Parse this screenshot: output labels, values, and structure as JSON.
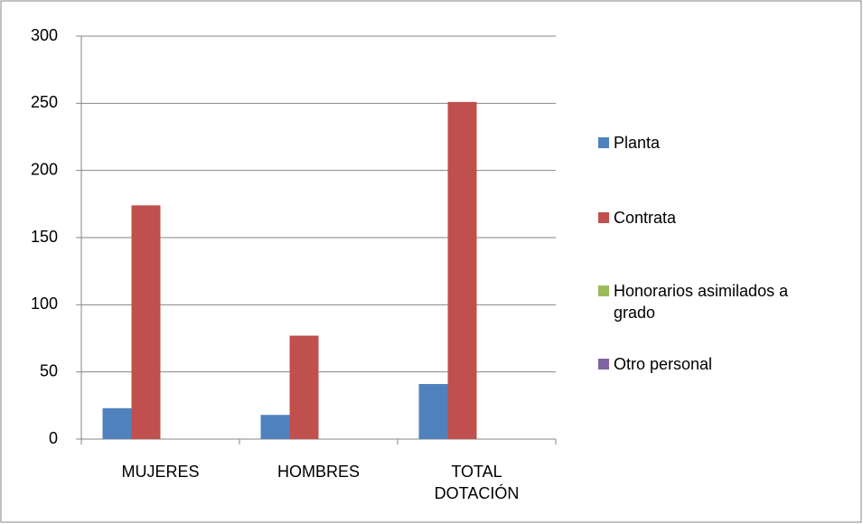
{
  "chart_data": {
    "type": "bar",
    "categories": [
      "MUJERES",
      "HOMBRES",
      "TOTAL DOTACIÓN"
    ],
    "series": [
      {
        "name": "Planta",
        "color": "#4f81bd",
        "values": [
          23,
          18,
          41
        ]
      },
      {
        "name": "Contrata",
        "color": "#c0504d",
        "values": [
          174,
          77,
          251
        ]
      },
      {
        "name": "Honorarios asimilados a grado",
        "color": "#9bbb59",
        "values": [
          0,
          0,
          0
        ]
      },
      {
        "name": "Otro personal",
        "color": "#8064a2",
        "values": [
          0,
          0,
          0
        ]
      }
    ],
    "ylim": [
      0,
      300
    ],
    "yticks": [
      0,
      50,
      100,
      150,
      200,
      250,
      300
    ],
    "grid": true,
    "legend": "right"
  }
}
